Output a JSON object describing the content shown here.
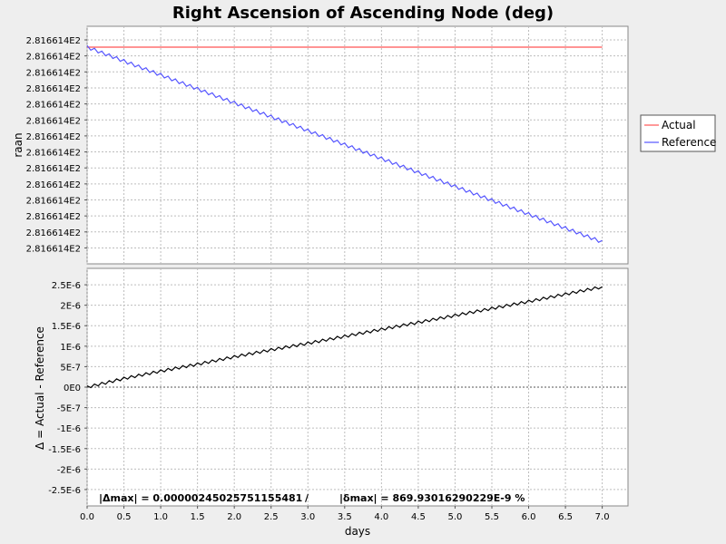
{
  "chart_data": [
    {
      "type": "line",
      "title": "Right Ascension of Ascending Node (deg)",
      "ylabel": "raan",
      "xlim": [
        0.0,
        7.35
      ],
      "x_ticks": [
        "0.0",
        "0.5",
        "1.0",
        "1.5",
        "2.0",
        "2.5",
        "3.0",
        "3.5",
        "4.0",
        "4.5",
        "5.0",
        "5.5",
        "6.0",
        "6.5",
        "7.0"
      ],
      "y_ticks": [
        "2.816614E2",
        "2.816614E2",
        "2.816614E2",
        "2.816614E2",
        "2.816614E2",
        "2.816614E2",
        "2.816614E2",
        "2.816614E2",
        "2.816614E2",
        "2.816614E2",
        "2.816614E2",
        "2.816614E2",
        "2.816614E2",
        "2.816614E2"
      ],
      "legend": "right",
      "grid": true,
      "series": [
        {
          "name": "Actual",
          "color": "#ff5555",
          "x": [
            0.0,
            7.0
          ],
          "y": [
            0,
            0
          ]
        },
        {
          "name": "Reference",
          "color": "#5555ff",
          "x": [
            0.0,
            7.0
          ],
          "y": [
            0,
            -1
          ]
        }
      ]
    },
    {
      "type": "line",
      "xlabel": "days",
      "ylabel": "Δ = Actual - Reference",
      "xlim": [
        0.0,
        7.35
      ],
      "ylim": [
        -2.9e-06,
        2.9e-06
      ],
      "x_ticks": [
        "0.0",
        "0.5",
        "1.0",
        "1.5",
        "2.0",
        "2.5",
        "3.0",
        "3.5",
        "4.0",
        "4.5",
        "5.0",
        "5.5",
        "6.0",
        "6.5",
        "7.0"
      ],
      "y_ticks": [
        "2.5E-6",
        "2E-6",
        "1.5E-6",
        "1E-6",
        "5E-7",
        "0E0",
        "-5E-7",
        "-1E-6",
        "-1.5E-6",
        "-2E-6",
        "-2.5E-6"
      ],
      "grid": true,
      "series": [
        {
          "color": "#000000",
          "x": [
            0.0,
            0.5,
            1.0,
            1.5,
            2.0,
            2.5,
            3.0,
            3.5,
            4.0,
            4.5,
            5.0,
            5.5,
            6.0,
            6.5,
            7.0
          ],
          "y": [
            0.0,
            2.1e-07,
            3.9e-07,
            5.6e-07,
            7.4e-07,
            9.1e-07,
            1.07e-06,
            1.24e-06,
            1.41e-06,
            1.58e-06,
            1.75e-06,
            1.92e-06,
            2.09e-06,
            2.27e-06,
            2.45e-06
          ]
        }
      ]
    }
  ],
  "stats": {
    "delta_max": "|Δmax| = 0.00000245025751155481",
    "separator": "/",
    "rel_max": "|δmax| = 869.93016290229E-9 %"
  }
}
